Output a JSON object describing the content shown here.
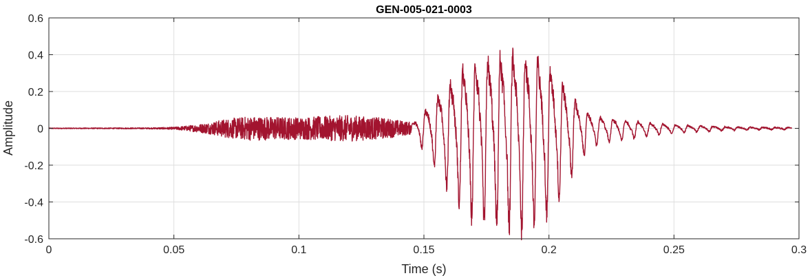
{
  "chart_data": {
    "type": "line",
    "title": "GEN-005-021-0003",
    "xlabel": "Time (s)",
    "ylabel": "Amplitude",
    "xlim": [
      0,
      0.3
    ],
    "ylim": [
      -0.6,
      0.6
    ],
    "xticks": [
      0,
      0.05,
      0.1,
      0.15,
      0.2,
      0.25,
      0.3
    ],
    "xtick_labels": [
      "0",
      "0.05",
      "0.1",
      "0.15",
      "0.2",
      "0.25",
      "0.3"
    ],
    "yticks": [
      -0.6,
      -0.4,
      -0.2,
      0,
      0.2,
      0.4,
      0.6
    ],
    "ytick_labels": [
      "-0.6",
      "-0.4",
      "-0.2",
      "0",
      "0.2",
      "0.4",
      "0.6"
    ],
    "grid": true,
    "line_color": "#A2142F",
    "series": [
      {
        "duration": 0.297,
        "envelope": [
          [
            0.0,
            0.002
          ],
          [
            0.04,
            0.003
          ],
          [
            0.05,
            0.006
          ],
          [
            0.055,
            0.012
          ],
          [
            0.06,
            0.02
          ],
          [
            0.065,
            0.03
          ],
          [
            0.07,
            0.045
          ],
          [
            0.08,
            0.06
          ],
          [
            0.1,
            0.055
          ],
          [
            0.12,
            0.065
          ],
          [
            0.135,
            0.05
          ],
          [
            0.145,
            0.03
          ],
          [
            0.15,
            0.12
          ],
          [
            0.155,
            0.22
          ],
          [
            0.16,
            0.33
          ],
          [
            0.165,
            0.42
          ],
          [
            0.17,
            0.48
          ],
          [
            0.18,
            0.52
          ],
          [
            0.19,
            0.54
          ],
          [
            0.195,
            0.5
          ],
          [
            0.2,
            0.44
          ],
          [
            0.205,
            0.35
          ],
          [
            0.21,
            0.22
          ],
          [
            0.215,
            0.12
          ],
          [
            0.22,
            0.08
          ],
          [
            0.23,
            0.06
          ],
          [
            0.24,
            0.04
          ],
          [
            0.25,
            0.025
          ],
          [
            0.26,
            0.018
          ],
          [
            0.27,
            0.012
          ],
          [
            0.28,
            0.008
          ],
          [
            0.297,
            0.006
          ]
        ],
        "voiced_start": 0.145,
        "noise_level": 0.035,
        "pitch_hz": 200
      }
    ]
  }
}
